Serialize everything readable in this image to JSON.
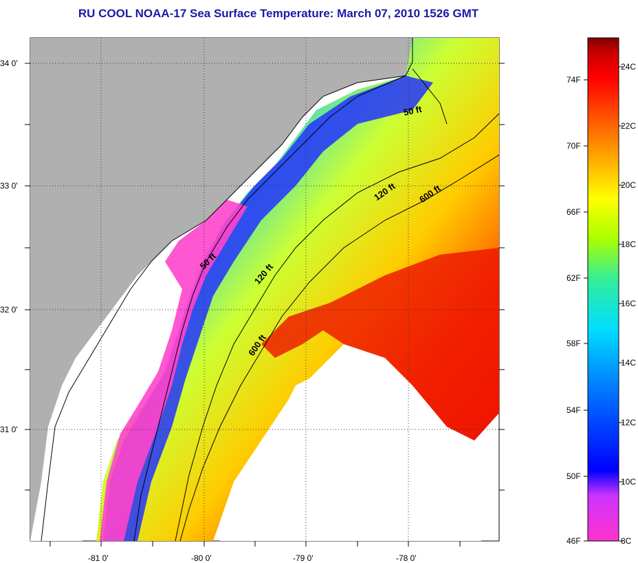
{
  "title": "RU COOL  NOAA-17  Sea Surface Temperature:  March 07, 2010 1526 GMT",
  "axes": {
    "lon_labels": [
      "-81 0'",
      "-80 0'",
      "-79 0'",
      "-78 0'"
    ],
    "lat_labels": [
      "34 0'",
      "33 0'",
      "32 0'",
      "31 0'"
    ]
  },
  "contours": [
    {
      "label": "50 ft"
    },
    {
      "label": "50 ft"
    },
    {
      "label": "120 ft"
    },
    {
      "label": "120 ft"
    },
    {
      "label": "600 ft"
    },
    {
      "label": "600 ft"
    }
  ],
  "colorbar": {
    "fahrenheit": [
      "74F",
      "70F",
      "66F",
      "62F",
      "58F",
      "54F",
      "50F",
      "46F"
    ],
    "celsius": [
      "24C",
      "22C",
      "20C",
      "18C",
      "16C",
      "14C",
      "12C",
      "10C",
      "8C"
    ],
    "colors": [
      "#ff33cc",
      "#cc33ff",
      "#0000ff",
      "#0077ff",
      "#00ddff",
      "#33ee99",
      "#aaff00",
      "#ffff00",
      "#ffaa00",
      "#ff5500",
      "#ff0000",
      "#cc0000",
      "#800000"
    ]
  },
  "colors": {
    "land": "#b0b0b0",
    "no_data": "#ffffff",
    "title": "#1a1aa6"
  }
}
